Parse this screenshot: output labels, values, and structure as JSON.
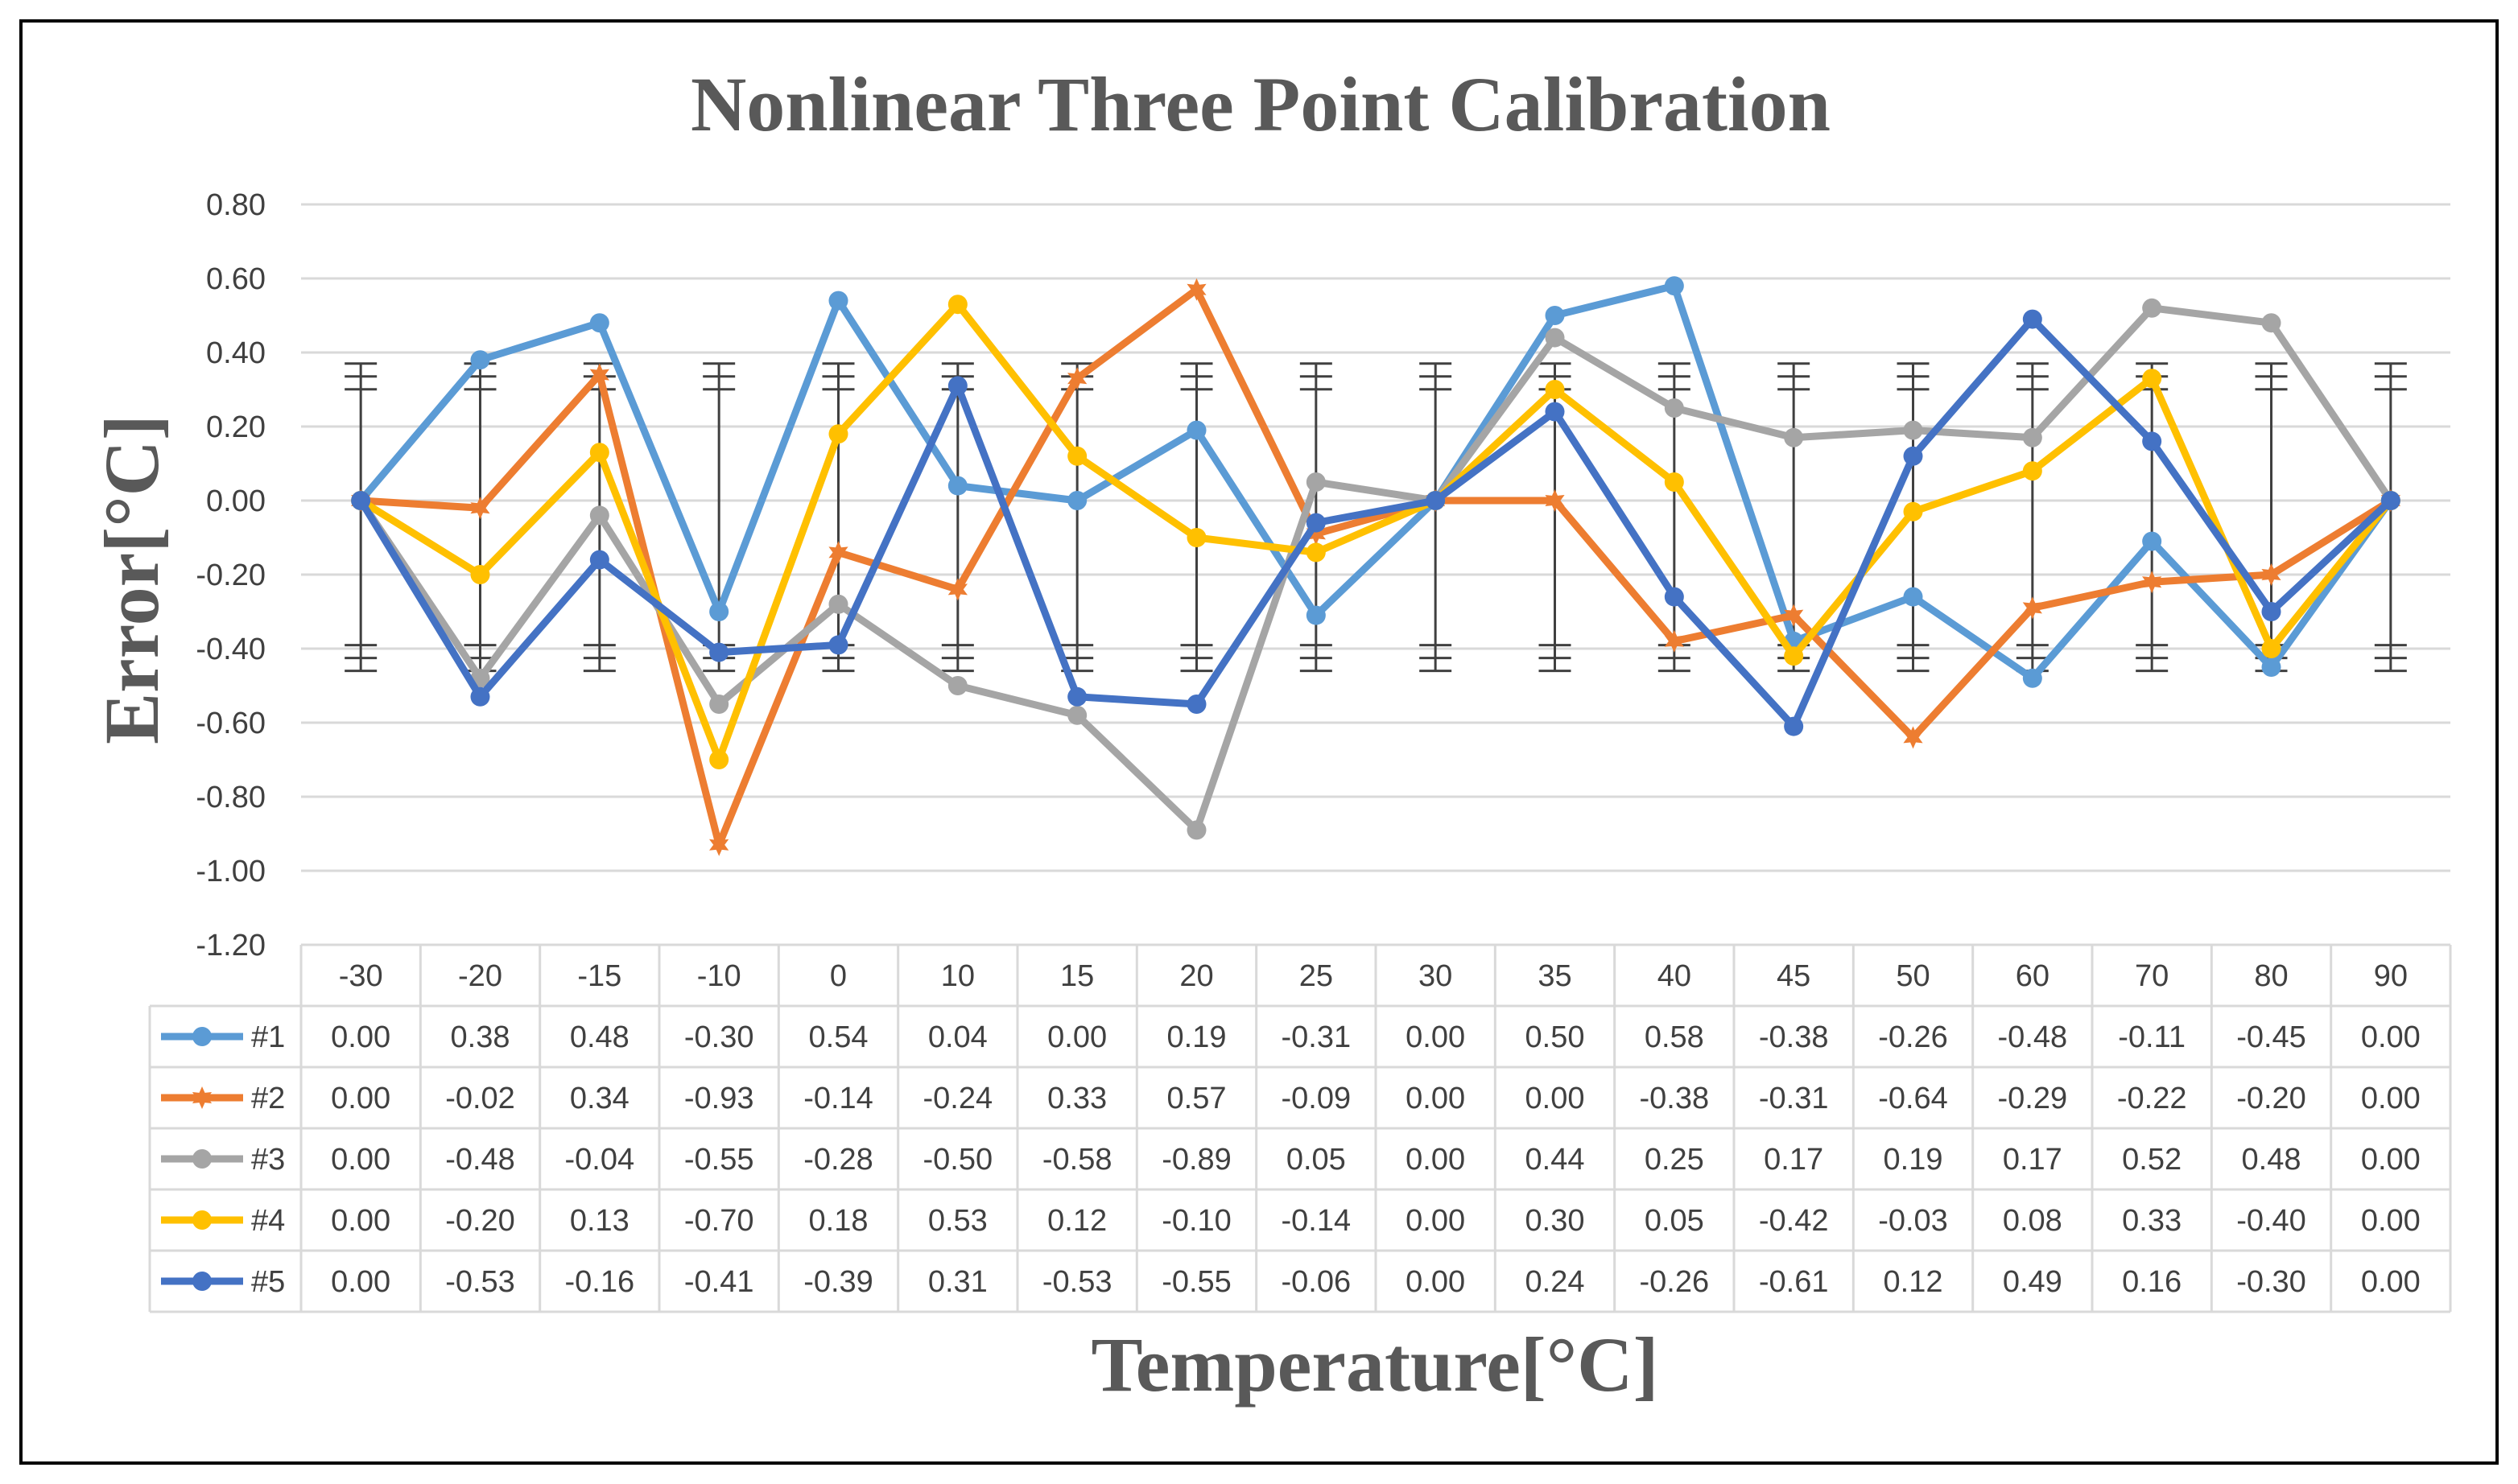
{
  "chart_data": {
    "type": "line",
    "title": "Nonlinear Three Point Calibration",
    "xlabel": "Temperature[°C]",
    "ylabel": "Error[°C]",
    "ylim": [
      -1.2,
      0.8
    ],
    "y_ticks": [
      "0.80",
      "0.60",
      "0.40",
      "0.20",
      "0.00",
      "-0.20",
      "-0.40",
      "-0.60",
      "-0.80",
      "-1.00",
      "-1.20"
    ],
    "categories": [
      "-30",
      "-20",
      "-15",
      "-10",
      "0",
      "10",
      "15",
      "20",
      "25",
      "30",
      "35",
      "40",
      "45",
      "50",
      "60",
      "70",
      "80",
      "90"
    ],
    "error_bar": {
      "upper": 0.37,
      "lower": -0.46
    },
    "grid": true,
    "legend": "data-table",
    "series": [
      {
        "name": "#1",
        "color": "#5B9BD5",
        "marker": "circle",
        "values": [
          0.0,
          0.38,
          0.48,
          -0.3,
          0.54,
          0.04,
          0.0,
          0.19,
          -0.31,
          0.0,
          0.5,
          0.58,
          -0.38,
          -0.26,
          -0.48,
          -0.11,
          -0.45,
          0.0
        ],
        "labels": [
          "0.00",
          "0.38",
          "0.48",
          "-0.30",
          "0.54",
          "0.04",
          "0.00",
          "0.19",
          "-0.31",
          "0.00",
          "0.50",
          "0.58",
          "-0.38",
          "-0.26",
          "-0.48",
          "-0.11",
          "-0.45",
          "0.00"
        ]
      },
      {
        "name": "#2",
        "color": "#ED7D31",
        "marker": "star",
        "values": [
          0.0,
          -0.02,
          0.34,
          -0.93,
          -0.14,
          -0.24,
          0.33,
          0.57,
          -0.09,
          0.0,
          0.0,
          -0.38,
          -0.31,
          -0.64,
          -0.29,
          -0.22,
          -0.2,
          0.0
        ],
        "labels": [
          "0.00",
          "-0.02",
          "0.34",
          "-0.93",
          "-0.14",
          "-0.24",
          "0.33",
          "0.57",
          "-0.09",
          "0.00",
          "0.00",
          "-0.38",
          "-0.31",
          "-0.64",
          "-0.29",
          "-0.22",
          "-0.20",
          "0.00"
        ]
      },
      {
        "name": "#3",
        "color": "#A5A5A5",
        "marker": "circle",
        "values": [
          0.0,
          -0.48,
          -0.04,
          -0.55,
          -0.28,
          -0.5,
          -0.58,
          -0.89,
          0.05,
          0.0,
          0.44,
          0.25,
          0.17,
          0.19,
          0.17,
          0.52,
          0.48,
          0.0
        ],
        "labels": [
          "0.00",
          "-0.48",
          "-0.04",
          "-0.55",
          "-0.28",
          "-0.50",
          "-0.58",
          "-0.89",
          "0.05",
          "0.00",
          "0.44",
          "0.25",
          "0.17",
          "0.19",
          "0.17",
          "0.52",
          "0.48",
          "0.00"
        ]
      },
      {
        "name": "#4",
        "color": "#FFC000",
        "marker": "circle",
        "values": [
          0.0,
          -0.2,
          0.13,
          -0.7,
          0.18,
          0.53,
          0.12,
          -0.1,
          -0.14,
          0.0,
          0.3,
          0.05,
          -0.42,
          -0.03,
          0.08,
          0.33,
          -0.4,
          0.0
        ],
        "labels": [
          "0.00",
          "-0.20",
          "0.13",
          "-0.70",
          "0.18",
          "0.53",
          "0.12",
          "-0.10",
          "-0.14",
          "0.00",
          "0.30",
          "0.05",
          "-0.42",
          "-0.03",
          "0.08",
          "0.33",
          "-0.40",
          "0.00"
        ]
      },
      {
        "name": "#5",
        "color": "#4472C4",
        "marker": "circle",
        "values": [
          0.0,
          -0.53,
          -0.16,
          -0.41,
          -0.39,
          0.31,
          -0.53,
          -0.55,
          -0.06,
          0.0,
          0.24,
          -0.26,
          -0.61,
          0.12,
          0.49,
          0.16,
          -0.3,
          0.0
        ],
        "labels": [
          "0.00",
          "-0.53",
          "-0.16",
          "-0.41",
          "-0.39",
          "0.31",
          "-0.53",
          "-0.55",
          "-0.06",
          "0.00",
          "0.24",
          "-0.26",
          "-0.61",
          "0.12",
          "0.49",
          "0.16",
          "-0.30",
          "0.00"
        ]
      }
    ]
  }
}
